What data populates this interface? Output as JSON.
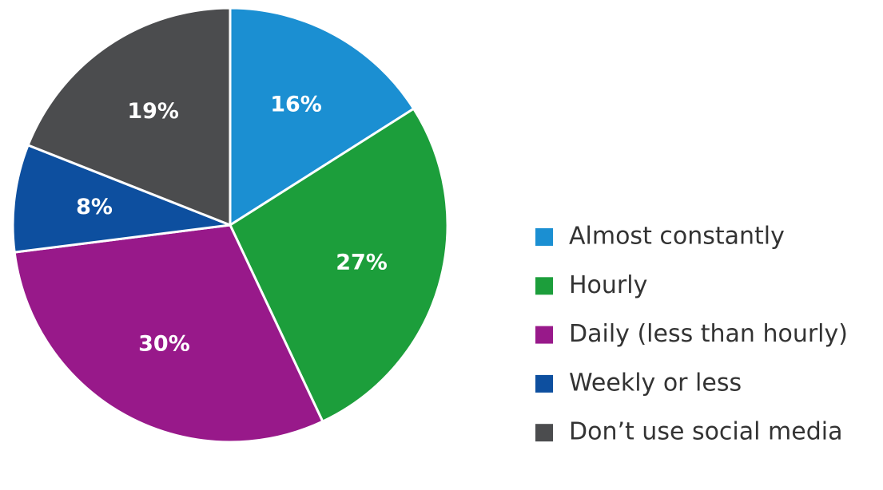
{
  "chart_data": {
    "type": "pie",
    "categories": [
      "Almost constantly",
      "Hourly",
      "Daily (less than hourly)",
      "Weekly or less",
      "Don’t use social media"
    ],
    "values": [
      16,
      27,
      30,
      8,
      19
    ],
    "value_labels": [
      "16%",
      "27%",
      "30%",
      "8%",
      "19%"
    ],
    "colors": [
      "#1b8fd2",
      "#1c9e3b",
      "#98198a",
      "#0d4f9f",
      "#4b4c4e"
    ],
    "legend": "right"
  }
}
